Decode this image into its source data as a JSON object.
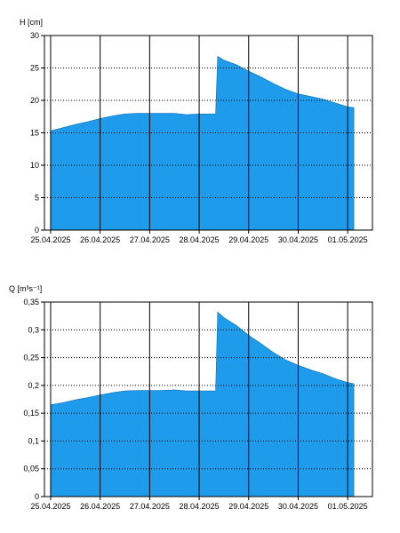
{
  "chart_data": [
    {
      "type": "area",
      "ylabel": "H [cm]",
      "ylim": [
        0,
        30
      ],
      "yticks": [
        0,
        5,
        10,
        15,
        20,
        25,
        30
      ],
      "ytick_labels": [
        "0",
        "5",
        "10",
        "15",
        "20",
        "25",
        "30"
      ],
      "xlim": [
        "2025-04-24T21:00",
        "2025-05-01T12:00"
      ],
      "x_tick_dates": [
        "2025-04-25T00:00",
        "2025-04-26T00:00",
        "2025-04-27T00:00",
        "2025-04-28T00:00",
        "2025-04-29T00:00",
        "2025-04-30T00:00",
        "2025-05-01T00:00"
      ],
      "x_tick_labels": [
        "25.04.2025",
        "26.04.2025",
        "27.04.2025",
        "28.04.2025",
        "29.04.2025",
        "30.04.2025",
        "01.05.2025"
      ],
      "grid": true,
      "fill_color": "#1E9BEB",
      "x": [
        "2025-04-25T00:00",
        "2025-04-25T06:00",
        "2025-04-25T12:00",
        "2025-04-25T18:00",
        "2025-04-26T00:00",
        "2025-04-26T06:00",
        "2025-04-26T12:00",
        "2025-04-26T18:00",
        "2025-04-27T00:00",
        "2025-04-27T06:00",
        "2025-04-27T12:00",
        "2025-04-27T18:00",
        "2025-04-28T00:00",
        "2025-04-28T06:00",
        "2025-04-28T08:00",
        "2025-04-28T09:00",
        "2025-04-28T12:00",
        "2025-04-28T18:00",
        "2025-04-29T00:00",
        "2025-04-29T06:00",
        "2025-04-29T12:00",
        "2025-04-29T18:00",
        "2025-04-30T00:00",
        "2025-04-30T06:00",
        "2025-04-30T12:00",
        "2025-04-30T18:00",
        "2025-05-01T00:00",
        "2025-05-01T03:00"
      ],
      "values": [
        15.3,
        15.8,
        16.3,
        16.7,
        17.2,
        17.6,
        17.9,
        18.0,
        18.0,
        18.0,
        18.0,
        17.8,
        17.9,
        17.9,
        17.9,
        26.8,
        26.2,
        25.5,
        24.5,
        23.6,
        22.6,
        21.7,
        21.0,
        20.6,
        20.2,
        19.6,
        19.0,
        18.9
      ]
    },
    {
      "type": "area",
      "ylabel": "Q [m³s⁻¹]",
      "ylim": [
        0,
        0.35
      ],
      "yticks": [
        0,
        0.05,
        0.1,
        0.15,
        0.2,
        0.25,
        0.3,
        0.35
      ],
      "ytick_labels": [
        "0",
        "0,05",
        "0,1",
        "0,15",
        "0,2",
        "0,25",
        "0,3",
        "0,35"
      ],
      "xlim": [
        "2025-04-24T21:00",
        "2025-05-01T12:00"
      ],
      "x_tick_dates": [
        "2025-04-25T00:00",
        "2025-04-26T00:00",
        "2025-04-27T00:00",
        "2025-04-28T00:00",
        "2025-04-29T00:00",
        "2025-04-30T00:00",
        "2025-05-01T00:00"
      ],
      "x_tick_labels": [
        "25.04.2025",
        "26.04.2025",
        "27.04.2025",
        "28.04.2025",
        "29.04.2025",
        "30.04.2025",
        "01.05.2025"
      ],
      "grid": true,
      "fill_color": "#1E9BEB",
      "x": [
        "2025-04-25T00:00",
        "2025-04-25T06:00",
        "2025-04-25T12:00",
        "2025-04-25T18:00",
        "2025-04-26T00:00",
        "2025-04-26T06:00",
        "2025-04-26T12:00",
        "2025-04-26T18:00",
        "2025-04-27T00:00",
        "2025-04-27T06:00",
        "2025-04-27T12:00",
        "2025-04-27T18:00",
        "2025-04-28T00:00",
        "2025-04-28T06:00",
        "2025-04-28T08:00",
        "2025-04-28T09:00",
        "2025-04-28T12:00",
        "2025-04-28T18:00",
        "2025-04-29T00:00",
        "2025-04-29T06:00",
        "2025-04-29T12:00",
        "2025-04-29T18:00",
        "2025-04-30T00:00",
        "2025-04-30T06:00",
        "2025-04-30T12:00",
        "2025-04-30T18:00",
        "2025-05-01T00:00",
        "2025-05-01T03:00"
      ],
      "values": [
        0.165,
        0.169,
        0.174,
        0.178,
        0.183,
        0.187,
        0.19,
        0.191,
        0.191,
        0.191,
        0.192,
        0.19,
        0.19,
        0.19,
        0.19,
        0.332,
        0.322,
        0.308,
        0.29,
        0.275,
        0.259,
        0.246,
        0.236,
        0.228,
        0.221,
        0.212,
        0.205,
        0.203
      ]
    }
  ]
}
